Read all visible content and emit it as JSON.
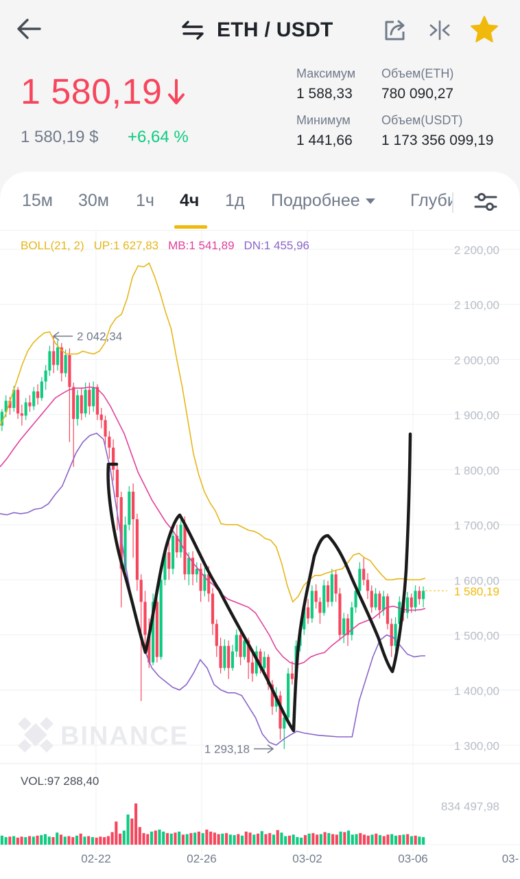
{
  "header": {
    "pair": "ETH / USDT",
    "icons": {
      "back": "back-arrow-icon",
      "swap": "swap-icon",
      "share": "share-icon",
      "compare": "compare-icon",
      "favorite": "star-icon"
    },
    "favorite_color": "#f0b90b"
  },
  "ticker": {
    "last_price": "1 580,19",
    "last_price_color": "#f6465d",
    "fiat_price": "1 580,19 $",
    "change": "+6,64 %",
    "change_color": "#0ecb81",
    "high_label": "Максимум",
    "high_value": "1 588,33",
    "low_label": "Минимум",
    "low_value": "1 441,66",
    "vol_base_label": "Объем(ETH)",
    "vol_base_value": "780 090,27",
    "vol_quote_label": "Объем(USDT)",
    "vol_quote_value": "1 173 356 099,19"
  },
  "tabs": {
    "items": [
      "15м",
      "30м",
      "1ч",
      "4ч",
      "1д"
    ],
    "active": "4ч",
    "more": "Подробнее",
    "depth": "Глубина"
  },
  "indicator": {
    "name": "BOLL(21, 2)",
    "up": "UP:1 627,83",
    "mb": "MB:1 541,89",
    "dn": "DN:1 455,96",
    "colors": {
      "up": "#e6b619",
      "mb": "#e0409b",
      "dn": "#8a64c8"
    }
  },
  "chart_data": {
    "type": "candlestick",
    "watermark": "BINANCE",
    "y_ticks": [
      "2 200,00",
      "2 100,00",
      "2 000,00",
      "1 900,00",
      "1 800,00",
      "1 700,00",
      "1 600,00",
      "1 500,00",
      "1 400,00",
      "1 300,00"
    ],
    "ylim": [
      1300,
      2200
    ],
    "x_ticks": [
      "02-22",
      "02-26",
      "03-02",
      "03-06",
      "03-"
    ],
    "high_marker": "2 042,34",
    "low_marker": "1 293,18",
    "last_price_label": "1 580,19",
    "last_price": 1580.19,
    "up_color": "#0ecb81",
    "down_color": "#f6465d",
    "candles": [
      [
        1880,
        1905,
        1870,
        1910
      ],
      [
        1905,
        1925,
        1895,
        1935
      ],
      [
        1925,
        1912,
        1900,
        1932
      ],
      [
        1912,
        1945,
        1905,
        1952
      ],
      [
        1945,
        1902,
        1892,
        1950
      ],
      [
        1902,
        1898,
        1880,
        1918
      ],
      [
        1898,
        1922,
        1890,
        1930
      ],
      [
        1922,
        1915,
        1905,
        1935
      ],
      [
        1915,
        1942,
        1908,
        1950
      ],
      [
        1942,
        1930,
        1918,
        1955
      ],
      [
        1930,
        1960,
        1925,
        1968
      ],
      [
        1960,
        1980,
        1945,
        1990
      ],
      [
        1980,
        2015,
        1970,
        2025
      ],
      [
        2015,
        1990,
        1975,
        2042
      ],
      [
        1990,
        2022,
        1980,
        2035
      ],
      [
        2022,
        1975,
        1960,
        2030
      ],
      [
        1975,
        2008,
        1968,
        2018
      ],
      [
        2008,
        1950,
        1850,
        2020
      ],
      [
        1950,
        1892,
        1805,
        1958
      ],
      [
        1892,
        1935,
        1880,
        1945
      ],
      [
        1935,
        1902,
        1890,
        1948
      ],
      [
        1902,
        1945,
        1895,
        1958
      ],
      [
        1945,
        1915,
        1900,
        1958
      ],
      [
        1915,
        1950,
        1905,
        1960
      ],
      [
        1950,
        1900,
        1890,
        1955
      ],
      [
        1900,
        1890,
        1875,
        1912
      ],
      [
        1890,
        1860,
        1845,
        1898
      ],
      [
        1860,
        1840,
        1820,
        1870
      ],
      [
        1840,
        1800,
        1780,
        1855
      ],
      [
        1800,
        1750,
        1690,
        1810
      ],
      [
        1750,
        1620,
        1550,
        1760
      ],
      [
        1620,
        1700,
        1610,
        1715
      ],
      [
        1700,
        1760,
        1690,
        1770
      ],
      [
        1760,
        1710,
        1640,
        1775
      ],
      [
        1710,
        1600,
        1580,
        1720
      ],
      [
        1600,
        1560,
        1380,
        1610
      ],
      [
        1560,
        1500,
        1480,
        1580
      ],
      [
        1500,
        1450,
        1440,
        1530
      ],
      [
        1450,
        1560,
        1445,
        1575
      ],
      [
        1560,
        1460,
        1450,
        1570
      ],
      [
        1460,
        1600,
        1455,
        1615
      ],
      [
        1600,
        1650,
        1590,
        1660
      ],
      [
        1650,
        1620,
        1600,
        1670
      ],
      [
        1620,
        1680,
        1610,
        1690
      ],
      [
        1680,
        1650,
        1640,
        1700
      ],
      [
        1650,
        1700,
        1640,
        1710
      ],
      [
        1700,
        1610,
        1600,
        1715
      ],
      [
        1610,
        1640,
        1590,
        1650
      ],
      [
        1640,
        1610,
        1590,
        1652
      ],
      [
        1610,
        1620,
        1595,
        1632
      ],
      [
        1620,
        1580,
        1560,
        1630
      ],
      [
        1580,
        1610,
        1570,
        1622
      ],
      [
        1610,
        1575,
        1560,
        1625
      ],
      [
        1575,
        1520,
        1500,
        1585
      ],
      [
        1520,
        1480,
        1460,
        1528
      ],
      [
        1480,
        1440,
        1430,
        1495
      ],
      [
        1440,
        1480,
        1435,
        1492
      ],
      [
        1480,
        1440,
        1420,
        1490
      ],
      [
        1440,
        1470,
        1435,
        1482
      ],
      [
        1470,
        1500,
        1460,
        1510
      ],
      [
        1500,
        1460,
        1445,
        1505
      ],
      [
        1460,
        1490,
        1455,
        1498
      ],
      [
        1490,
        1450,
        1420,
        1495
      ],
      [
        1450,
        1430,
        1415,
        1465
      ],
      [
        1430,
        1470,
        1425,
        1480
      ],
      [
        1470,
        1440,
        1430,
        1475
      ],
      [
        1440,
        1460,
        1432,
        1470
      ],
      [
        1460,
        1410,
        1400,
        1465
      ],
      [
        1410,
        1370,
        1355,
        1418
      ],
      [
        1370,
        1390,
        1360,
        1405
      ],
      [
        1390,
        1330,
        1310,
        1398
      ],
      [
        1330,
        1350,
        1293,
        1360
      ],
      [
        1350,
        1430,
        1345,
        1440
      ],
      [
        1430,
        1420,
        1410,
        1452
      ],
      [
        1420,
        1480,
        1412,
        1490
      ],
      [
        1480,
        1510,
        1470,
        1520
      ],
      [
        1510,
        1550,
        1500,
        1560
      ],
      [
        1550,
        1530,
        1520,
        1565
      ],
      [
        1530,
        1580,
        1522,
        1590
      ],
      [
        1580,
        1560,
        1548,
        1592
      ],
      [
        1560,
        1540,
        1520,
        1568
      ],
      [
        1540,
        1590,
        1535,
        1600
      ],
      [
        1590,
        1560,
        1550,
        1598
      ],
      [
        1560,
        1610,
        1552,
        1620
      ],
      [
        1610,
        1575,
        1560,
        1618
      ],
      [
        1575,
        1500,
        1490,
        1585
      ],
      [
        1500,
        1530,
        1485,
        1540
      ],
      [
        1530,
        1500,
        1480,
        1538
      ],
      [
        1500,
        1550,
        1490,
        1560
      ],
      [
        1550,
        1580,
        1540,
        1590
      ],
      [
        1580,
        1620,
        1570,
        1632
      ],
      [
        1620,
        1600,
        1590,
        1640
      ],
      [
        1600,
        1580,
        1565,
        1612
      ],
      [
        1580,
        1550,
        1540,
        1590
      ],
      [
        1550,
        1575,
        1545,
        1585
      ],
      [
        1575,
        1545,
        1530,
        1580
      ],
      [
        1545,
        1570,
        1535,
        1580
      ],
      [
        1570,
        1520,
        1510,
        1575
      ],
      [
        1520,
        1480,
        1460,
        1530
      ],
      [
        1480,
        1520,
        1470,
        1532
      ],
      [
        1520,
        1560,
        1510,
        1570
      ],
      [
        1560,
        1540,
        1525,
        1568
      ],
      [
        1540,
        1568,
        1530,
        1578
      ],
      [
        1568,
        1550,
        1540,
        1575
      ],
      [
        1550,
        1580,
        1542,
        1590
      ],
      [
        1580,
        1565,
        1555,
        1588
      ],
      [
        1565,
        1580,
        1550,
        1588
      ]
    ],
    "boll_up": [
      [
        0,
        1880
      ],
      [
        8,
        1900
      ],
      [
        16,
        1930
      ],
      [
        24,
        1960
      ],
      [
        32,
        1990
      ],
      [
        40,
        2015
      ],
      [
        48,
        2030
      ],
      [
        56,
        2040
      ],
      [
        64,
        2048
      ],
      [
        72,
        2050
      ],
      [
        80,
        2030
      ],
      [
        88,
        2018
      ],
      [
        96,
        2010
      ],
      [
        104,
        2010
      ],
      [
        112,
        2010
      ],
      [
        120,
        2015
      ],
      [
        128,
        2012
      ],
      [
        136,
        2010
      ],
      [
        144,
        2015
      ],
      [
        152,
        2030
      ],
      [
        160,
        2060
      ],
      [
        168,
        2075
      ],
      [
        176,
        2082
      ],
      [
        184,
        2110
      ],
      [
        192,
        2150
      ],
      [
        200,
        2170
      ],
      [
        208,
        2168
      ],
      [
        216,
        2175
      ],
      [
        224,
        2150
      ],
      [
        232,
        2120
      ],
      [
        240,
        2085
      ],
      [
        248,
        2055
      ],
      [
        256,
        2000
      ],
      [
        264,
        1950
      ],
      [
        272,
        1890
      ],
      [
        280,
        1830
      ],
      [
        288,
        1790
      ],
      [
        296,
        1760
      ],
      [
        304,
        1740
      ],
      [
        312,
        1725
      ],
      [
        320,
        1702
      ],
      [
        328,
        1700
      ],
      [
        336,
        1700
      ],
      [
        344,
        1700
      ],
      [
        352,
        1695
      ],
      [
        360,
        1690
      ],
      [
        368,
        1688
      ],
      [
        376,
        1683
      ],
      [
        384,
        1675
      ],
      [
        392,
        1672
      ],
      [
        400,
        1660
      ],
      [
        408,
        1630
      ],
      [
        416,
        1590
      ],
      [
        424,
        1560
      ],
      [
        432,
        1570
      ],
      [
        440,
        1590
      ],
      [
        448,
        1600
      ],
      [
        456,
        1608
      ],
      [
        464,
        1608
      ],
      [
        472,
        1612
      ],
      [
        480,
        1615
      ],
      [
        488,
        1618
      ],
      [
        496,
        1620
      ],
      [
        504,
        1632
      ],
      [
        512,
        1645
      ],
      [
        520,
        1648
      ],
      [
        528,
        1640
      ],
      [
        536,
        1635
      ],
      [
        544,
        1622
      ],
      [
        552,
        1610
      ],
      [
        560,
        1600
      ],
      [
        568,
        1600
      ],
      [
        576,
        1602
      ],
      [
        584,
        1602
      ],
      [
        592,
        1600
      ],
      [
        600,
        1600
      ],
      [
        608,
        1600
      ],
      [
        616,
        1603
      ]
    ],
    "boll_mid": [
      [
        0,
        1805
      ],
      [
        10,
        1820
      ],
      [
        20,
        1838
      ],
      [
        30,
        1855
      ],
      [
        40,
        1870
      ],
      [
        50,
        1885
      ],
      [
        60,
        1900
      ],
      [
        70,
        1915
      ],
      [
        80,
        1930
      ],
      [
        90,
        1938
      ],
      [
        100,
        1945
      ],
      [
        110,
        1948
      ],
      [
        120,
        1948
      ],
      [
        130,
        1950
      ],
      [
        140,
        1948
      ],
      [
        150,
        1935
      ],
      [
        160,
        1915
      ],
      [
        170,
        1890
      ],
      [
        180,
        1865
      ],
      [
        190,
        1830
      ],
      [
        200,
        1795
      ],
      [
        210,
        1770
      ],
      [
        220,
        1745
      ],
      [
        230,
        1725
      ],
      [
        240,
        1705
      ],
      [
        250,
        1690
      ],
      [
        260,
        1670
      ],
      [
        270,
        1648
      ],
      [
        280,
        1630
      ],
      [
        290,
        1615
      ],
      [
        300,
        1600
      ],
      [
        310,
        1590
      ],
      [
        320,
        1575
      ],
      [
        330,
        1565
      ],
      [
        340,
        1560
      ],
      [
        350,
        1555
      ],
      [
        360,
        1550
      ],
      [
        370,
        1540
      ],
      [
        380,
        1520
      ],
      [
        390,
        1500
      ],
      [
        400,
        1475
      ],
      [
        410,
        1460
      ],
      [
        420,
        1450
      ],
      [
        430,
        1446
      ],
      [
        440,
        1450
      ],
      [
        450,
        1460
      ],
      [
        460,
        1465
      ],
      [
        470,
        1468
      ],
      [
        480,
        1480
      ],
      [
        490,
        1490
      ],
      [
        500,
        1500
      ],
      [
        510,
        1510
      ],
      [
        520,
        1520
      ],
      [
        530,
        1525
      ],
      [
        540,
        1530
      ],
      [
        550,
        1540
      ],
      [
        560,
        1550
      ],
      [
        570,
        1552
      ],
      [
        580,
        1548
      ],
      [
        590,
        1545
      ],
      [
        600,
        1545
      ],
      [
        610,
        1546
      ],
      [
        616,
        1548
      ]
    ],
    "boll_dn": [
      [
        0,
        1720
      ],
      [
        10,
        1718
      ],
      [
        20,
        1722
      ],
      [
        30,
        1720
      ],
      [
        40,
        1722
      ],
      [
        50,
        1728
      ],
      [
        60,
        1730
      ],
      [
        70,
        1738
      ],
      [
        80,
        1755
      ],
      [
        90,
        1770
      ],
      [
        100,
        1800
      ],
      [
        110,
        1830
      ],
      [
        120,
        1850
      ],
      [
        130,
        1862
      ],
      [
        140,
        1866
      ],
      [
        150,
        1855
      ],
      [
        160,
        1800
      ],
      [
        170,
        1720
      ],
      [
        180,
        1640
      ],
      [
        190,
        1570
      ],
      [
        200,
        1510
      ],
      [
        210,
        1470
      ],
      [
        220,
        1440
      ],
      [
        230,
        1425
      ],
      [
        240,
        1415
      ],
      [
        250,
        1405
      ],
      [
        260,
        1400
      ],
      [
        270,
        1410
      ],
      [
        280,
        1430
      ],
      [
        290,
        1455
      ],
      [
        300,
        1440
      ],
      [
        310,
        1410
      ],
      [
        320,
        1400
      ],
      [
        330,
        1395
      ],
      [
        340,
        1395
      ],
      [
        350,
        1390
      ],
      [
        360,
        1370
      ],
      [
        370,
        1350
      ],
      [
        380,
        1320
      ],
      [
        390,
        1305
      ],
      [
        400,
        1300
      ],
      [
        410,
        1310
      ],
      [
        420,
        1318
      ],
      [
        430,
        1325
      ],
      [
        440,
        1322
      ],
      [
        450,
        1320
      ],
      [
        460,
        1318
      ],
      [
        470,
        1317
      ],
      [
        480,
        1316
      ],
      [
        490,
        1315
      ],
      [
        500,
        1315
      ],
      [
        510,
        1315
      ],
      [
        520,
        1380
      ],
      [
        530,
        1420
      ],
      [
        540,
        1460
      ],
      [
        550,
        1490
      ],
      [
        560,
        1500
      ],
      [
        570,
        1495
      ],
      [
        580,
        1480
      ],
      [
        590,
        1465
      ],
      [
        600,
        1460
      ],
      [
        610,
        1462
      ],
      [
        616,
        1462
      ]
    ],
    "volume_label": "VOL:97 288,40",
    "volume_max_label": "834 497,98",
    "volume_max": 834497.98,
    "volumes": [
      180,
      150,
      160,
      170,
      140,
      160,
      150,
      170,
      160,
      180,
      190,
      210,
      160,
      150,
      240,
      200,
      160,
      170,
      150,
      180,
      220,
      160,
      170,
      150,
      140,
      160,
      150,
      170,
      250,
      460,
      220,
      280,
      600,
      520,
      820,
      350,
      230,
      210,
      260,
      280,
      300,
      260,
      230,
      220,
      240,
      260,
      200,
      210,
      230,
      240,
      260,
      230,
      300,
      260,
      240,
      210,
      220,
      230,
      200,
      190,
      210,
      180,
      260,
      240,
      200,
      220,
      270,
      210,
      230,
      200,
      290,
      240,
      170,
      180,
      200,
      150,
      140,
      190,
      220,
      230,
      200,
      210,
      250,
      230,
      210,
      200,
      260,
      250,
      280,
      200,
      210,
      230,
      200,
      180,
      200,
      220,
      190,
      170,
      200,
      210,
      180,
      190,
      200,
      210,
      170,
      180,
      160,
      150
    ]
  }
}
